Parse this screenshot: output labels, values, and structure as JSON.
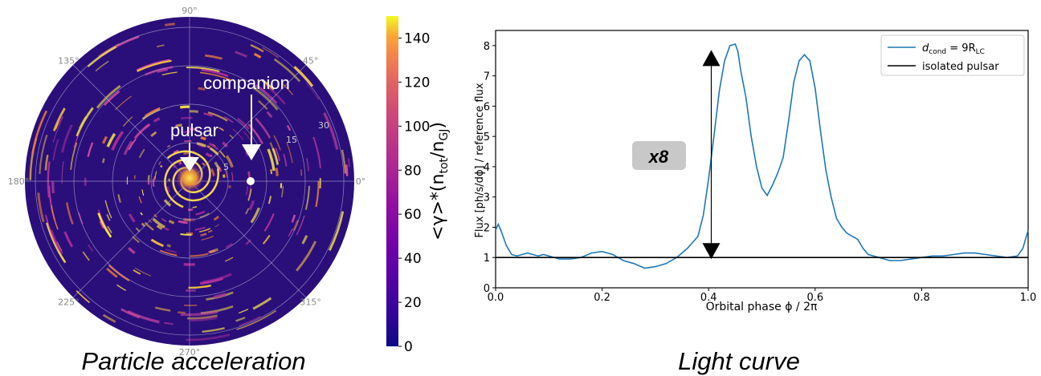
{
  "figure": {
    "left_caption": "Particle acceleration",
    "right_caption": "Light curve"
  },
  "chart_data": [
    {
      "type": "heatmap",
      "projection": "polar",
      "angular_ticks": [
        "0°",
        "45°",
        "90°",
        "135°",
        "180°",
        "225°",
        "270°",
        "315°"
      ],
      "radial_ticks": [
        "5",
        "15",
        "30"
      ],
      "annotations": [
        {
          "text": "pulsar",
          "marker": "white arrow pointing down to center"
        },
        {
          "text": "companion",
          "marker": "white arrow pointing down to companion dot"
        }
      ],
      "colorbar": {
        "label": "<γ>*(n_tot/n_GJ)",
        "label_main": "<γ>*(n",
        "label_sub1": "tot",
        "label_mid": "/n",
        "label_sub2": "GJ",
        "label_end": ")",
        "range": [
          0,
          150
        ],
        "ticks": [
          0,
          20,
          40,
          60,
          80,
          100,
          120,
          140
        ],
        "colormap": "plasma"
      },
      "colors": {
        "background": "#2d0a78",
        "bright": "#f5e24a",
        "mid": "#d44aa0"
      }
    },
    {
      "type": "line",
      "xlabel": "Orbital phase ϕ / 2π",
      "ylabel": "Flux [ph/s/dϕ] / reference flux",
      "xlim": [
        0.0,
        1.0
      ],
      "ylim": [
        0,
        8.5
      ],
      "xticks": [
        0.0,
        0.2,
        0.4,
        0.6,
        0.8,
        1.0
      ],
      "yticks": [
        0,
        1,
        2,
        3,
        4,
        5,
        6,
        7,
        8
      ],
      "legend_position": "top-right",
      "series": [
        {
          "name_main": "d",
          "name_sub": "cond",
          "name_mid": " = 9R",
          "name_sub2": "LC",
          "color": "#1f77b4",
          "x": [
            0.0,
            0.005,
            0.01,
            0.02,
            0.03,
            0.04,
            0.05,
            0.06,
            0.07,
            0.08,
            0.09,
            0.1,
            0.12,
            0.14,
            0.16,
            0.18,
            0.2,
            0.22,
            0.24,
            0.26,
            0.28,
            0.3,
            0.32,
            0.34,
            0.36,
            0.37,
            0.38,
            0.39,
            0.4,
            0.41,
            0.42,
            0.43,
            0.44,
            0.45,
            0.455,
            0.46,
            0.47,
            0.48,
            0.49,
            0.5,
            0.51,
            0.52,
            0.53,
            0.54,
            0.55,
            0.56,
            0.57,
            0.58,
            0.59,
            0.6,
            0.61,
            0.62,
            0.63,
            0.64,
            0.65,
            0.66,
            0.67,
            0.68,
            0.69,
            0.7,
            0.72,
            0.74,
            0.76,
            0.78,
            0.8,
            0.82,
            0.84,
            0.86,
            0.88,
            0.9,
            0.92,
            0.94,
            0.96,
            0.98,
            0.99,
            1.0
          ],
          "y": [
            1.9,
            2.1,
            1.9,
            1.4,
            1.1,
            1.05,
            1.1,
            1.15,
            1.1,
            1.05,
            1.1,
            1.05,
            0.95,
            0.95,
            1.0,
            1.15,
            1.2,
            1.1,
            0.9,
            0.8,
            0.65,
            0.7,
            0.8,
            1.0,
            1.3,
            1.5,
            1.7,
            2.4,
            3.6,
            5.0,
            6.5,
            7.5,
            8.0,
            8.05,
            7.8,
            7.2,
            6.3,
            5.0,
            4.0,
            3.3,
            3.05,
            3.4,
            3.8,
            4.3,
            5.5,
            6.8,
            7.5,
            7.7,
            7.5,
            6.6,
            5.2,
            3.9,
            3.0,
            2.3,
            2.0,
            1.8,
            1.7,
            1.6,
            1.3,
            1.1,
            1.0,
            0.9,
            0.9,
            0.95,
            1.0,
            1.05,
            1.05,
            1.1,
            1.15,
            1.15,
            1.1,
            1.05,
            1.0,
            1.05,
            1.3,
            1.9
          ]
        },
        {
          "name": "isolated pulsar",
          "color": "#000000",
          "x": [
            0.0,
            1.0
          ],
          "y": [
            1.0,
            1.0
          ]
        }
      ],
      "annotation": {
        "text": "x8",
        "arrow_from": 1.0,
        "arrow_to": 7.8,
        "arrow_x": 0.405
      }
    }
  ]
}
